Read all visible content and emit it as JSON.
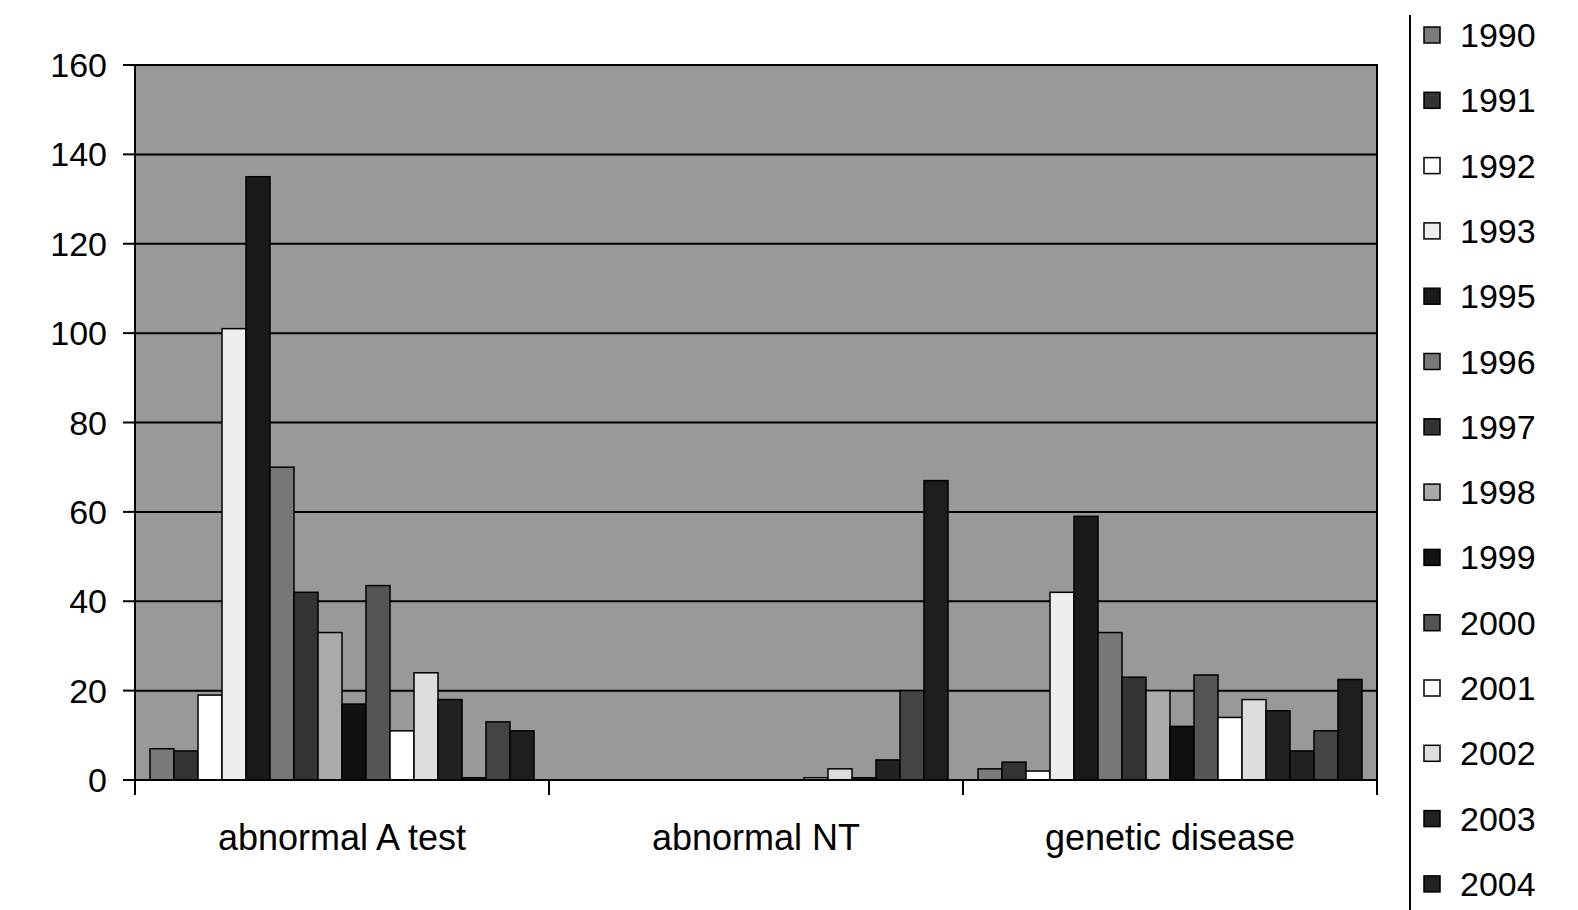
{
  "chart_data": {
    "type": "bar",
    "categories": [
      "abnormal A test",
      "abnormal NT",
      "genetic disease"
    ],
    "series": [
      {
        "name": "1990",
        "color": "#7a7a7a",
        "values": [
          7,
          0,
          2.5
        ]
      },
      {
        "name": "1991",
        "color": "#333333",
        "values": [
          6.5,
          0,
          4
        ]
      },
      {
        "name": "1992",
        "color": "#ffffff",
        "values": [
          19,
          0,
          2
        ]
      },
      {
        "name": "1993",
        "color": "#eeeeee",
        "values": [
          101,
          0,
          42
        ]
      },
      {
        "name": "1995",
        "color": "#1a1a1a",
        "values": [
          135,
          0,
          59
        ]
      },
      {
        "name": "1996",
        "color": "#777777",
        "values": [
          70,
          0,
          33
        ]
      },
      {
        "name": "1997",
        "color": "#333333",
        "values": [
          42,
          0,
          23
        ]
      },
      {
        "name": "1998",
        "color": "#aaaaaa",
        "values": [
          33,
          0,
          20
        ]
      },
      {
        "name": "1999",
        "color": "#111111",
        "values": [
          17,
          0,
          12
        ]
      },
      {
        "name": "2000",
        "color": "#555555",
        "values": [
          43.5,
          0,
          23.5
        ]
      },
      {
        "name": "2001",
        "color": "#ffffff",
        "values": [
          11,
          0.5,
          14
        ]
      },
      {
        "name": "2002",
        "color": "#dddddd",
        "values": [
          24,
          2.5,
          18
        ]
      },
      {
        "name": "2003",
        "color": "#222222",
        "values": [
          18,
          0.5,
          15.5
        ]
      },
      {
        "name": "2004",
        "color": "#222222",
        "values": [
          0.5,
          4.5,
          6.5
        ]
      },
      {
        "name": null,
        "color": "#444444",
        "values": [
          13,
          20,
          11
        ]
      },
      {
        "name": null,
        "color": "#1e1e1e",
        "values": [
          11,
          67,
          22.5
        ]
      }
    ],
    "ylim": [
      0,
      160
    ],
    "yticks": [
      0,
      20,
      40,
      60,
      80,
      100,
      120,
      140,
      160
    ],
    "grid": true,
    "legend": "right"
  }
}
